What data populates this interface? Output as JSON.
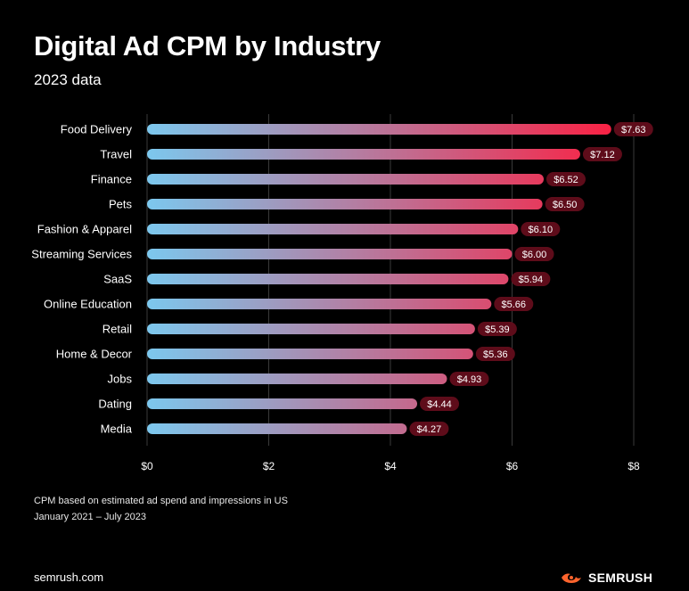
{
  "header": {
    "title": "Digital Ad CPM by Industry",
    "subtitle": "2023 data"
  },
  "chart_data": {
    "type": "bar",
    "orientation": "horizontal",
    "title": "Digital Ad CPM by Industry",
    "subtitle": "2023 data",
    "categories": [
      "Food Delivery",
      "Travel",
      "Finance",
      "Pets",
      "Fashion & Apparel",
      "Streaming Services",
      "SaaS",
      "Online Education",
      "Retail",
      "Home & Decor",
      "Jobs",
      "Dating",
      "Media"
    ],
    "values": [
      7.63,
      7.12,
      6.52,
      6.5,
      6.1,
      6.0,
      5.94,
      5.66,
      5.39,
      5.36,
      4.93,
      4.44,
      4.27
    ],
    "value_labels": [
      "$7.63",
      "$7.12",
      "$6.52",
      "$6.50",
      "$6.10",
      "$6.00",
      "$5.94",
      "$5.66",
      "$5.39",
      "$5.36",
      "$4.93",
      "$4.44",
      "$4.27"
    ],
    "xlim": [
      0,
      8
    ],
    "x_ticks": [
      0,
      2,
      4,
      6,
      8
    ],
    "x_tick_labels": [
      "$0",
      "$2",
      "$4",
      "$6",
      "$8"
    ],
    "xlabel": "",
    "ylabel": "",
    "grid": "vertical",
    "legend": "none",
    "colors": {
      "bar_start": "#7cc8ee",
      "bar_end": "#ff1a3c",
      "label_bg": "#5e0c1a",
      "grid": "#3a3a3a"
    }
  },
  "footnotes": {
    "line1": "CPM based on estimated ad spend and impressions in US",
    "line2": "January 2021 – July 2023"
  },
  "footer": {
    "site": "semrush.com",
    "brand": "SEMRUSH",
    "brand_icon": "semrush-flame-icon",
    "brand_color": "#ff642d"
  }
}
